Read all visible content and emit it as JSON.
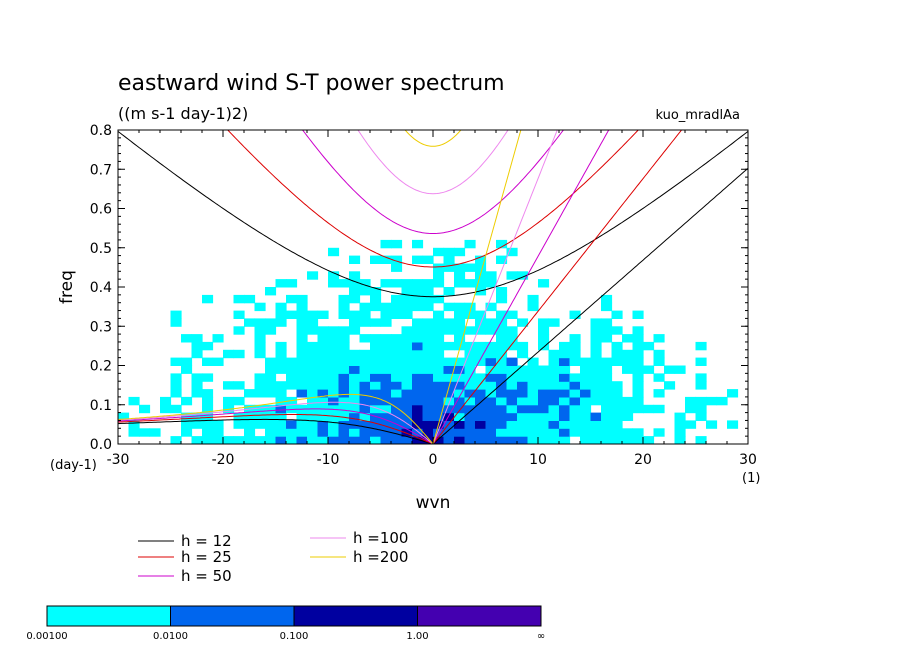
{
  "chart_data": {
    "type": "heatmap",
    "title": "eastward wind S-T power spectrum",
    "subtitle": "((m s-1 day-1)2)",
    "run_name": "kuo_mradlAa",
    "xlabel": "wvn",
    "ylabel": "freq",
    "x_unit": "(1)",
    "y_unit": "(day-1)",
    "xlim": [
      -30,
      30
    ],
    "ylim": [
      0,
      0.8
    ],
    "x_ticks": [
      "-30",
      "-20",
      "-10",
      "0",
      "10",
      "20",
      "30"
    ],
    "y_ticks": [
      "0.0",
      "0.1",
      "0.2",
      "0.3",
      "0.4",
      "0.5",
      "0.6",
      "0.7",
      "0.8"
    ],
    "colorbar": {
      "labels": [
        "0.00100",
        "0.0100",
        "0.100",
        "1.00",
        "∞"
      ],
      "colors": [
        "#00ffff",
        "#0066ee",
        "#0000a0",
        "#4400b0"
      ]
    },
    "dispersion_curves": [
      {
        "label": "h = 12",
        "h": 12,
        "color": "#000000"
      },
      {
        "label": "h = 25",
        "h": 25,
        "color": "#dd0000"
      },
      {
        "label": "h = 50",
        "h": 50,
        "color": "#cc00cc"
      },
      {
        "label": "h =100",
        "h": 100,
        "color": "#ee88ee"
      },
      {
        "label": "h =200",
        "h": 200,
        "color": "#eecc00"
      }
    ]
  }
}
